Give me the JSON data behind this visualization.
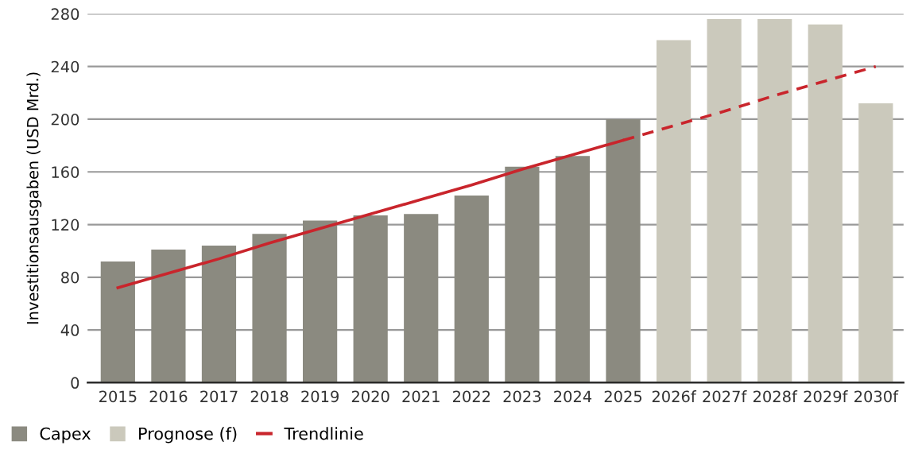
{
  "chart_data": {
    "type": "bar",
    "ylabel": "Investitionsausgaben (USD Mrd.)",
    "categories": [
      "2015",
      "2016",
      "2017",
      "2018",
      "2019",
      "2020",
      "2021",
      "2022",
      "2023",
      "2024",
      "2025",
      "2026f",
      "2027f",
      "2028f",
      "2029f",
      "2030f"
    ],
    "series": [
      {
        "name": "Capex",
        "color": "#8b8a80",
        "values": [
          92,
          101,
          104,
          113,
          123,
          127,
          128,
          142,
          164,
          172,
          200,
          null,
          null,
          null,
          null,
          null
        ]
      },
      {
        "name": "Prognose (f)",
        "color": "#cbc9bc",
        "values": [
          null,
          null,
          null,
          null,
          null,
          null,
          null,
          null,
          null,
          null,
          null,
          260,
          276,
          276,
          272,
          212
        ]
      },
      {
        "name": "Trendlinie",
        "type": "line",
        "color": "#c9252c",
        "line_style": "solid",
        "values": [
          72,
          83,
          94,
          106,
          117,
          128,
          139,
          150,
          162,
          173,
          184,
          null,
          null,
          null,
          null,
          null
        ]
      },
      {
        "type": "line",
        "color": "#c9252c",
        "line_style": "dashed",
        "values": [
          null,
          null,
          null,
          null,
          null,
          null,
          null,
          null,
          null,
          null,
          184,
          195,
          206,
          218,
          229,
          240
        ]
      }
    ],
    "ylim": [
      0,
      280
    ],
    "yticks": [
      0,
      40,
      80,
      120,
      160,
      200,
      240,
      280
    ],
    "grid": "y",
    "legend": "bottom left"
  }
}
